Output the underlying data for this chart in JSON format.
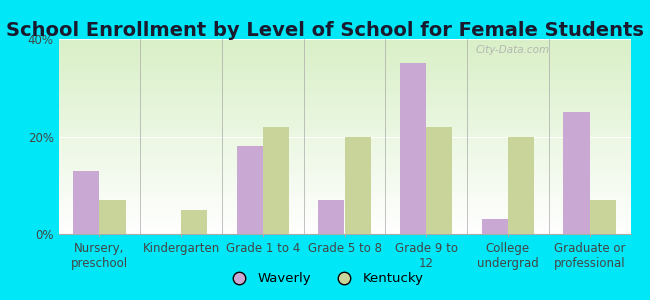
{
  "title": "School Enrollment by Level of School for Female Students",
  "categories": [
    "Nursery,\npreschool",
    "Kindergarten",
    "Grade 1 to 4",
    "Grade 5 to 8",
    "Grade 9 to\n12",
    "College\nundergrad",
    "Graduate or\nprofessional"
  ],
  "waverly": [
    13,
    0,
    18,
    7,
    35,
    3,
    25
  ],
  "kentucky": [
    7,
    5,
    22,
    20,
    22,
    20,
    7
  ],
  "waverly_color": "#c9a8d4",
  "kentucky_color": "#c9d49a",
  "background_outer": "#00e8f8",
  "ylim": [
    0,
    40
  ],
  "yticks": [
    0,
    20,
    40
  ],
  "ytick_labels": [
    "0%",
    "20%",
    "40%"
  ],
  "bar_width": 0.32,
  "legend_labels": [
    "Waverly",
    "Kentucky"
  ],
  "title_fontsize": 14,
  "tick_fontsize": 8.5,
  "watermark": "City-Data.com"
}
